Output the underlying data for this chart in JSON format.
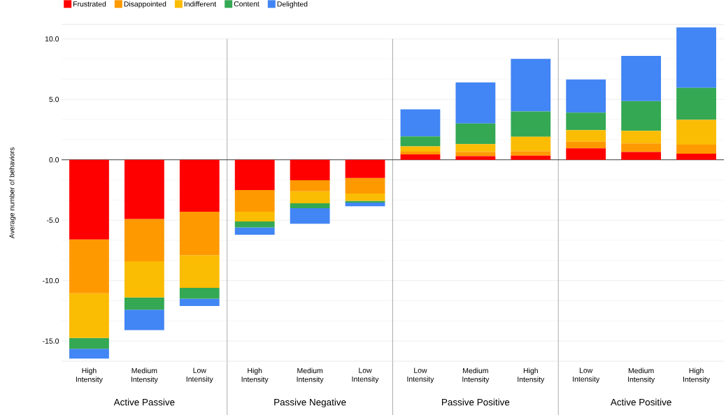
{
  "chart_data": {
    "type": "bar",
    "stacked": true,
    "ylabel": "Average number of behaviors",
    "categories": [
      "High Intensity",
      "Medium Intensity",
      "Low Intensity",
      "High Intensity",
      "Medium Intensity",
      "Low Intensity",
      "Low Intensity",
      "Medium Intensity",
      "High Intensity",
      "Low Intensity",
      "Medium Intensity",
      "High Intensity"
    ],
    "series": [
      {
        "name": "Frustrated",
        "color": "#ff0000",
        "values": [
          -6.6,
          -4.9,
          -4.3,
          -2.5,
          -1.7,
          -1.5,
          0.44,
          0.3,
          0.35,
          0.95,
          0.65,
          0.5
        ]
      },
      {
        "name": "Disappointed",
        "color": "#ff9900",
        "values": [
          -4.45,
          -3.5,
          -3.6,
          -1.8,
          -0.9,
          -1.3,
          0.23,
          0.35,
          0.35,
          0.55,
          0.7,
          0.75
        ]
      },
      {
        "name": "Indifferent",
        "color": "#fbbc04",
        "values": [
          -3.7,
          -3.0,
          -2.7,
          -0.8,
          -1.0,
          -0.6,
          0.44,
          0.65,
          1.2,
          0.95,
          1.05,
          2.05
        ]
      },
      {
        "name": "Content",
        "color": "#34a853",
        "values": [
          -0.9,
          -1.0,
          -0.9,
          -0.5,
          -0.4,
          -0.15,
          0.82,
          1.7,
          2.1,
          1.45,
          2.45,
          2.65
        ]
      },
      {
        "name": "Delighted",
        "color": "#4285f4",
        "values": [
          -0.8,
          -1.7,
          -0.6,
          -0.6,
          -1.3,
          -0.3,
          2.24,
          3.4,
          4.35,
          2.75,
          3.75,
          5.0
        ]
      }
    ],
    "ylim": [
      -16.67,
      11.2
    ],
    "yticks": [
      {
        "value": -15,
        "label": "-15.0"
      },
      {
        "value": -10,
        "label": "-10.0"
      },
      {
        "value": -5,
        "label": "-5.0"
      },
      {
        "value": 0,
        "label": "0.0"
      },
      {
        "value": 5,
        "label": "5.0"
      },
      {
        "value": 10,
        "label": "10.0"
      }
    ],
    "grid": "y",
    "legend": "top",
    "annotations": [
      "Active Passive",
      "Passive Negative",
      "Passive Positive",
      "Active Positive"
    ]
  }
}
